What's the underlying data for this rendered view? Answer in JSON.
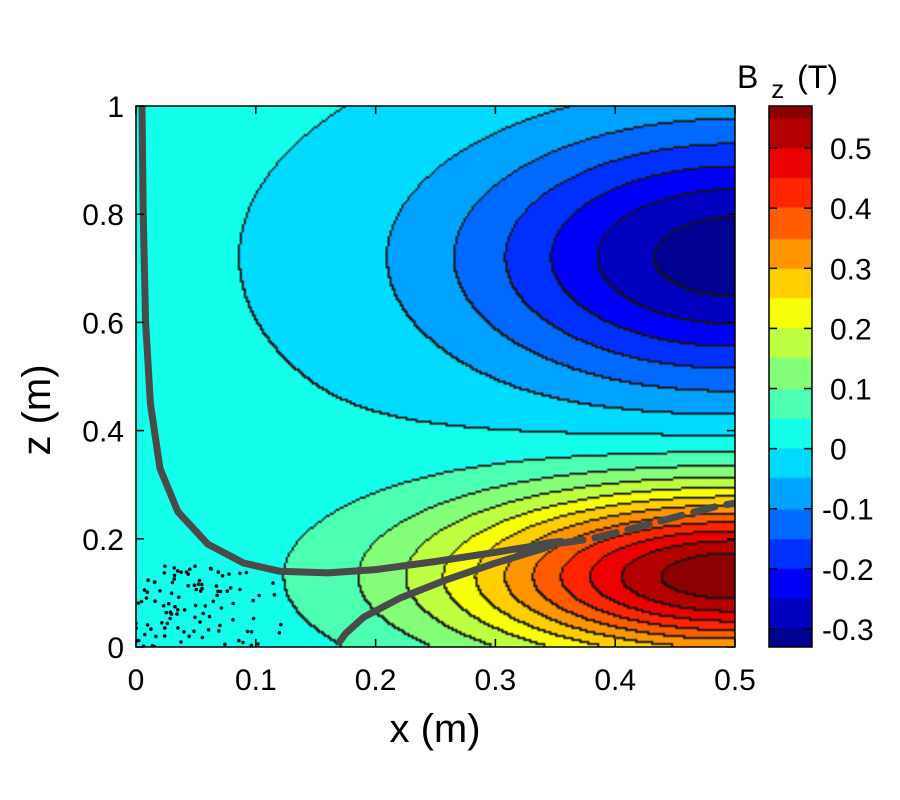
{
  "chart_data": {
    "type": "heatmap",
    "subtype": "filled-contour",
    "title": "",
    "xlabel": "x (m)",
    "ylabel": "z (m)",
    "xlim": [
      0,
      0.5
    ],
    "ylim": [
      0,
      1
    ],
    "x_ticks": [
      "0",
      "0.1",
      "0.2",
      "0.3",
      "0.4",
      "0.5"
    ],
    "y_ticks": [
      "0",
      "0.2",
      "0.4",
      "0.6",
      "0.8",
      "1"
    ],
    "colorbar": {
      "title_main": "B",
      "title_sub": "z",
      "title_unit": "(T)",
      "range": [
        -0.33,
        0.57
      ],
      "tick_labels": [
        "0.5",
        "0.4",
        "0.3",
        "0.2",
        "0.1",
        "0",
        "-0.1",
        "-0.2",
        "-0.3"
      ],
      "tick_values": [
        0.5,
        0.4,
        0.3,
        0.2,
        0.1,
        0,
        -0.1,
        -0.2,
        -0.3
      ],
      "colormap": "jet"
    },
    "field": {
      "description_values": "Bz field: ~0.57 T max near (0.5, 0.14), ~-0.33 T min near (0.5, 0.7), ~0 near x=0",
      "contour_levels": [
        -0.3,
        -0.25,
        -0.2,
        -0.15,
        -0.1,
        -0.05,
        0.0,
        0.05,
        0.1,
        0.15,
        0.2,
        0.25,
        0.3,
        0.35,
        0.4,
        0.45,
        0.5,
        0.55
      ]
    },
    "series": [
      {
        "style": "thick gray trajectory",
        "color": "#4a4a4a",
        "x": [
          0.005,
          0.006,
          0.008,
          0.012,
          0.02,
          0.035,
          0.06,
          0.09,
          0.12,
          0.16,
          0.2,
          0.25,
          0.3,
          0.33,
          0.345,
          0.355
        ],
        "y": [
          1.0,
          0.8,
          0.6,
          0.45,
          0.33,
          0.25,
          0.19,
          0.155,
          0.14,
          0.137,
          0.143,
          0.158,
          0.175,
          0.186,
          0.193,
          0.195
        ]
      },
      {
        "style": "thick gray trajectory (return branch)",
        "color": "#4a4a4a",
        "x": [
          0.355,
          0.34,
          0.3,
          0.26,
          0.22,
          0.19,
          0.175,
          0.17
        ],
        "y": [
          0.195,
          0.182,
          0.155,
          0.125,
          0.09,
          0.055,
          0.025,
          0.01
        ]
      },
      {
        "style": "dashed gray continuation",
        "color": "#4a4a4a",
        "x": [
          0.355,
          0.38,
          0.42,
          0.455,
          0.485,
          0.5
        ],
        "y": [
          0.192,
          0.2,
          0.222,
          0.243,
          0.26,
          0.266
        ]
      }
    ],
    "grid": false,
    "legend": "none"
  }
}
